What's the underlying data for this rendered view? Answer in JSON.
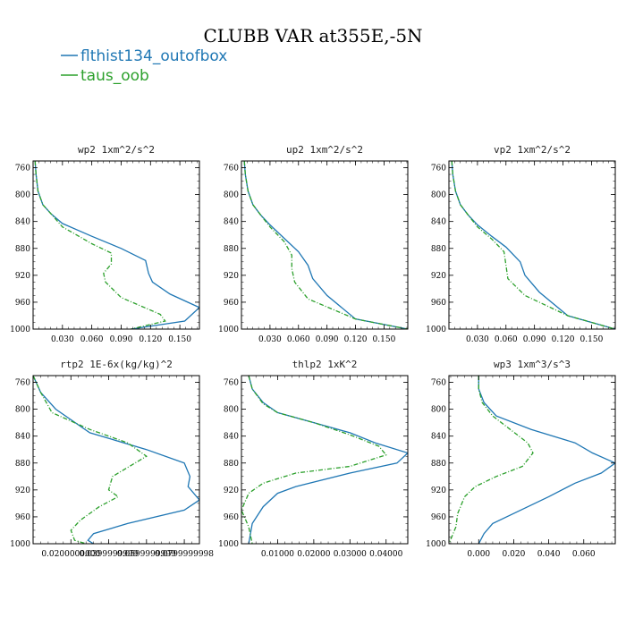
{
  "title": "CLUBB VAR at355E,-5N",
  "legend": [
    {
      "name": "flthist134_outofbox",
      "color": "#1f77b4"
    },
    {
      "name": "taus_oob",
      "color": "#2ca02c"
    }
  ],
  "chart_data": [
    {
      "type": "line",
      "title": "wp2   1xm^2/s^2",
      "xlim": [
        0.0,
        0.17
      ],
      "ylim": [
        1000,
        750
      ],
      "xticks": [
        0.03,
        0.06,
        0.09,
        0.12,
        0.15
      ],
      "xtick_labels": [
        "0.030",
        "0.060",
        "0.090",
        "0.120",
        "0.150"
      ],
      "yticks": [
        760,
        800,
        840,
        880,
        920,
        960,
        1000
      ],
      "ytick_labels": [
        "760",
        "800",
        "840",
        "880",
        "920",
        "960",
        "1000"
      ],
      "series": [
        {
          "name": "flthist134_outofbox",
          "x": [
            0.002,
            0.003,
            0.005,
            0.01,
            0.018,
            0.03,
            0.06,
            0.09,
            0.115,
            0.118,
            0.122,
            0.14,
            0.17,
            0.155,
            0.1
          ],
          "y": [
            750,
            770,
            795,
            815,
            828,
            843,
            862,
            880,
            898,
            917,
            930,
            948,
            968,
            988,
            1000
          ]
        },
        {
          "name": "taus_oob",
          "x": [
            0.002,
            0.003,
            0.005,
            0.01,
            0.018,
            0.03,
            0.06,
            0.08,
            0.08,
            0.072,
            0.074,
            0.09,
            0.13,
            0.135,
            0.1
          ],
          "y": [
            750,
            770,
            795,
            815,
            828,
            848,
            873,
            887,
            903,
            917,
            930,
            953,
            978,
            988,
            1000
          ]
        }
      ]
    },
    {
      "type": "line",
      "title": "up2   1xm^2/s^2",
      "xlim": [
        0.0,
        0.175
      ],
      "ylim": [
        1000,
        750
      ],
      "xticks": [
        0.03,
        0.06,
        0.09,
        0.12,
        0.15
      ],
      "xtick_labels": [
        "0.030",
        "0.060",
        "0.090",
        "0.120",
        "0.150"
      ],
      "yticks": [
        760,
        800,
        840,
        880,
        920,
        960,
        1000
      ],
      "ytick_labels": [
        "760",
        "800",
        "840",
        "880",
        "920",
        "960",
        "1000"
      ],
      "series": [
        {
          "name": "flthist134_outofbox",
          "x": [
            0.003,
            0.004,
            0.007,
            0.012,
            0.02,
            0.03,
            0.045,
            0.06,
            0.07,
            0.075,
            0.09,
            0.12,
            0.175
          ],
          "y": [
            750,
            770,
            795,
            815,
            830,
            845,
            865,
            885,
            905,
            925,
            950,
            985,
            1000
          ]
        },
        {
          "name": "taus_oob",
          "x": [
            0.003,
            0.004,
            0.007,
            0.012,
            0.02,
            0.03,
            0.045,
            0.053,
            0.053,
            0.056,
            0.07,
            0.12,
            0.175
          ],
          "y": [
            750,
            770,
            795,
            815,
            830,
            848,
            870,
            890,
            910,
            930,
            955,
            985,
            1000
          ]
        }
      ]
    },
    {
      "type": "line",
      "title": "vp2   1xm^2/s^2",
      "xlim": [
        0.0,
        0.175
      ],
      "ylim": [
        1000,
        750
      ],
      "xticks": [
        0.03,
        0.06,
        0.09,
        0.12,
        0.15
      ],
      "xtick_labels": [
        "0.030",
        "0.060",
        "0.090",
        "0.120",
        "0.150"
      ],
      "yticks": [
        760,
        800,
        840,
        880,
        920,
        960,
        1000
      ],
      "ytick_labels": [
        "760",
        "800",
        "840",
        "880",
        "920",
        "960",
        "1000"
      ],
      "series": [
        {
          "name": "flthist134_outofbox",
          "x": [
            0.003,
            0.004,
            0.007,
            0.012,
            0.02,
            0.03,
            0.045,
            0.06,
            0.075,
            0.08,
            0.095,
            0.125,
            0.175
          ],
          "y": [
            750,
            770,
            795,
            815,
            830,
            845,
            862,
            878,
            900,
            920,
            945,
            980,
            1000
          ]
        },
        {
          "name": "taus_oob",
          "x": [
            0.003,
            0.004,
            0.007,
            0.012,
            0.02,
            0.03,
            0.045,
            0.058,
            0.06,
            0.062,
            0.08,
            0.125,
            0.175
          ],
          "y": [
            750,
            770,
            795,
            815,
            830,
            848,
            866,
            885,
            905,
            925,
            950,
            980,
            1000
          ]
        }
      ]
    },
    {
      "type": "line",
      "title": "rtp2   1E-6x(kg/kg)^2",
      "xlim": [
        0.0,
        0.088
      ],
      "ylim": [
        1000,
        750
      ],
      "xticks": [
        0.02,
        0.04,
        0.06,
        0.08
      ],
      "xtick_labels": [
        "0.0200000000",
        "0.0399999999",
        "0.0599999999",
        "0.0799999998"
      ],
      "yticks": [
        760,
        800,
        840,
        880,
        920,
        960,
        1000
      ],
      "ytick_labels": [
        "760",
        "800",
        "840",
        "880",
        "920",
        "960",
        "1000"
      ],
      "series": [
        {
          "name": "flthist134_outofbox",
          "x": [
            0.0,
            0.004,
            0.012,
            0.03,
            0.06,
            0.08,
            0.083,
            0.082,
            0.088,
            0.08,
            0.05,
            0.032,
            0.029,
            0.032
          ],
          "y": [
            750,
            775,
            800,
            835,
            860,
            880,
            900,
            915,
            935,
            950,
            970,
            985,
            995,
            1000
          ]
        },
        {
          "name": "taus_oob",
          "x": [
            0.0,
            0.004,
            0.01,
            0.03,
            0.05,
            0.06,
            0.042,
            0.04,
            0.045,
            0.035,
            0.025,
            0.02,
            0.022,
            0.028
          ],
          "y": [
            750,
            775,
            805,
            830,
            850,
            870,
            900,
            920,
            930,
            945,
            965,
            980,
            995,
            1000
          ]
        }
      ]
    },
    {
      "type": "line",
      "title": "thlp2   1xK^2",
      "xlim": [
        0.0,
        0.046
      ],
      "ylim": [
        1000,
        750
      ],
      "xticks": [
        0.01,
        0.02,
        0.03,
        0.04
      ],
      "xtick_labels": [
        "0.01000",
        "0.02000",
        "0.03000",
        "0.04000"
      ],
      "yticks": [
        760,
        800,
        840,
        880,
        920,
        960,
        1000
      ],
      "ytick_labels": [
        "760",
        "800",
        "840",
        "880",
        "920",
        "960",
        "1000"
      ],
      "series": [
        {
          "name": "flthist134_outofbox",
          "x": [
            0.002,
            0.003,
            0.006,
            0.01,
            0.02,
            0.03,
            0.037,
            0.046,
            0.043,
            0.03,
            0.015,
            0.01,
            0.006,
            0.003,
            0.002
          ],
          "y": [
            750,
            770,
            790,
            805,
            820,
            835,
            850,
            865,
            880,
            895,
            915,
            925,
            945,
            970,
            1000
          ]
        },
        {
          "name": "taus_oob",
          "x": [
            0.002,
            0.003,
            0.006,
            0.01,
            0.02,
            0.03,
            0.038,
            0.04,
            0.03,
            0.015,
            0.006,
            0.002,
            0.0,
            0.002,
            0.003
          ],
          "y": [
            750,
            770,
            792,
            805,
            820,
            838,
            855,
            868,
            885,
            895,
            910,
            925,
            950,
            975,
            1000
          ]
        }
      ]
    },
    {
      "type": "line",
      "title": "wp3   1xm^3/s^3",
      "xlim": [
        -0.017,
        0.078
      ],
      "ylim": [
        1000,
        750
      ],
      "xticks": [
        0.0,
        0.02,
        0.04,
        0.06
      ],
      "xtick_labels": [
        "0.000",
        "0.020",
        "0.040",
        "0.060"
      ],
      "yticks": [
        760,
        800,
        840,
        880,
        920,
        960,
        1000
      ],
      "ytick_labels": [
        "760",
        "800",
        "840",
        "880",
        "920",
        "960",
        "1000"
      ],
      "series": [
        {
          "name": "flthist134_outofbox",
          "x": [
            0.0,
            0.0,
            0.003,
            0.01,
            0.03,
            0.055,
            0.065,
            0.078,
            0.07,
            0.055,
            0.04,
            0.02,
            0.008,
            0.003,
            0.0
          ],
          "y": [
            750,
            770,
            790,
            810,
            830,
            850,
            865,
            880,
            895,
            910,
            930,
            955,
            970,
            985,
            1000
          ]
        },
        {
          "name": "taus_oob",
          "x": [
            0.0,
            0.0,
            0.002,
            0.008,
            0.018,
            0.028,
            0.031,
            0.025,
            0.01,
            -0.002,
            -0.008,
            -0.012,
            -0.013,
            -0.017
          ],
          "y": [
            750,
            770,
            790,
            810,
            830,
            850,
            865,
            885,
            900,
            915,
            930,
            955,
            975,
            1000
          ]
        }
      ]
    }
  ]
}
